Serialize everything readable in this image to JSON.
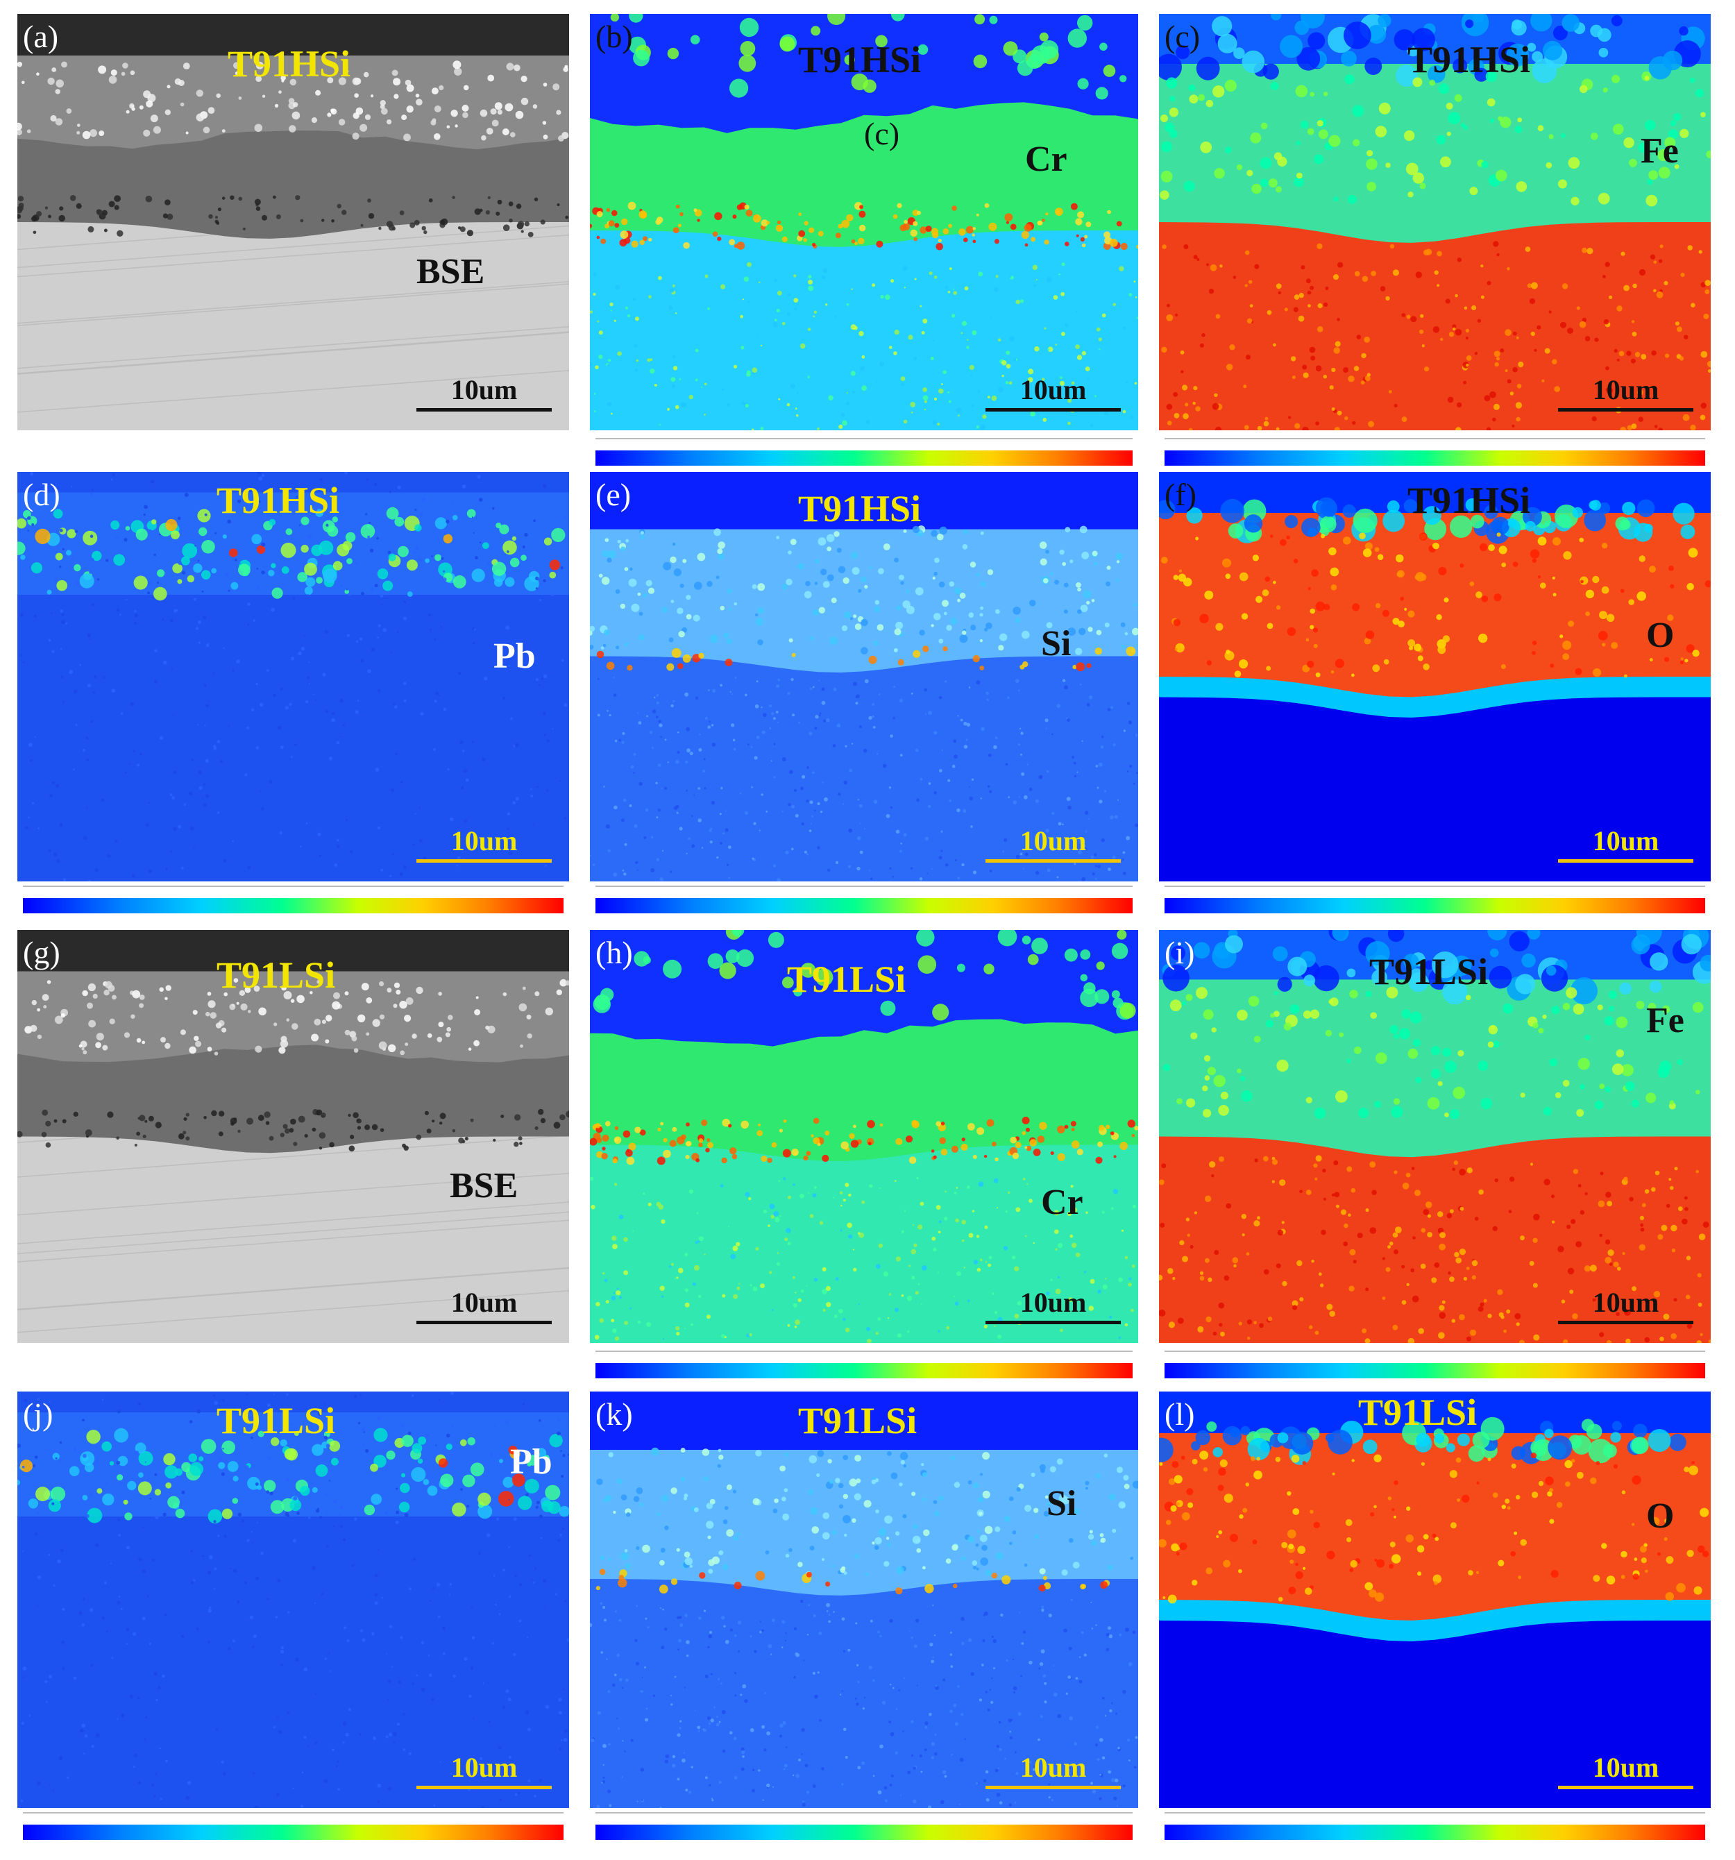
{
  "figure": {
    "panels": [
      {
        "id": "a",
        "label": "(a)",
        "title": "T91HSi",
        "element": "BSE",
        "scalebar": "10um",
        "type": "bse",
        "colorbar": false
      },
      {
        "id": "b",
        "label": "(b)",
        "title": "T91HSi",
        "element": "Cr",
        "scalebar": "10um",
        "type": "map-cr-h",
        "colorbar": true,
        "extra_label": "(c)"
      },
      {
        "id": "c",
        "label": "(c)",
        "title": "T91HSi",
        "element": "Fe",
        "scalebar": "10um",
        "type": "map-fe",
        "colorbar": true
      },
      {
        "id": "d",
        "label": "(d)",
        "title": "T91HSi",
        "element": "Pb",
        "scalebar": "10um",
        "type": "map-pb",
        "colorbar": true
      },
      {
        "id": "e",
        "label": "(e)",
        "title": "T91HSi",
        "element": "Si",
        "scalebar": "10um",
        "type": "map-si",
        "colorbar": true
      },
      {
        "id": "f",
        "label": "(f)",
        "title": "T91HSi",
        "element": "O",
        "scalebar": "10um",
        "type": "map-o",
        "colorbar": true
      },
      {
        "id": "g",
        "label": "(g)",
        "title": "T91LSi",
        "element": "BSE",
        "scalebar": "10um",
        "type": "bse",
        "colorbar": false
      },
      {
        "id": "h",
        "label": "(h)",
        "title": "T91LSi",
        "element": "Cr",
        "scalebar": "10um",
        "type": "map-cr-l",
        "colorbar": true
      },
      {
        "id": "i",
        "label": "(i)",
        "title": "T91LSi",
        "element": "Fe",
        "scalebar": "10um",
        "type": "map-fe",
        "colorbar": true
      },
      {
        "id": "j",
        "label": "(j)",
        "title": "T91LSi",
        "element": "Pb",
        "scalebar": "10um",
        "type": "map-pb",
        "colorbar": true
      },
      {
        "id": "k",
        "label": "(k)",
        "title": "T91LSi",
        "element": "Si",
        "scalebar": "10um",
        "type": "map-si",
        "colorbar": true
      },
      {
        "id": "l",
        "label": "(l)",
        "title": "T91LSi",
        "element": "O",
        "scalebar": "10um",
        "type": "map-o",
        "colorbar": true
      }
    ],
    "colors": {
      "title_yellow": "#f2e600",
      "scalebar_yellow": "#f2c400",
      "black": "#111111",
      "white": "#ffffff"
    }
  }
}
